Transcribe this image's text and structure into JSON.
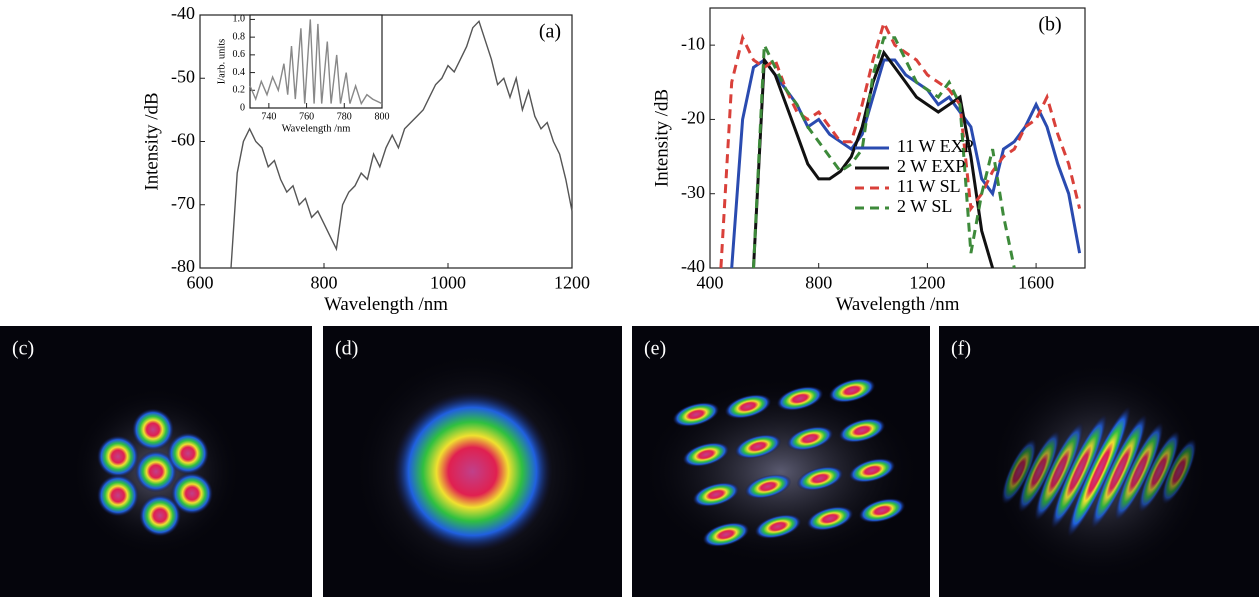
{
  "chart_data": [
    {
      "type": "line",
      "annotation": "(a)",
      "x_label": "Wavelength /nm",
      "y_label": "Intensity /dB",
      "color": "#555555",
      "xlim": [
        600,
        1200
      ],
      "ylim": [
        -80,
        -40
      ],
      "xticks": [
        600,
        800,
        1000,
        1200
      ],
      "yticks": [
        -80,
        -70,
        -60,
        -50,
        -40
      ],
      "x": [
        650,
        660,
        670,
        680,
        690,
        700,
        710,
        720,
        730,
        740,
        750,
        760,
        770,
        780,
        790,
        800,
        810,
        820,
        830,
        840,
        850,
        860,
        870,
        880,
        890,
        900,
        910,
        920,
        930,
        940,
        950,
        960,
        970,
        980,
        990,
        1000,
        1010,
        1020,
        1030,
        1040,
        1050,
        1060,
        1070,
        1080,
        1090,
        1100,
        1110,
        1120,
        1130,
        1140,
        1150,
        1160,
        1170,
        1180,
        1190,
        1200
      ],
      "values": [
        -80,
        -65,
        -60,
        -58,
        -60,
        -61,
        -64,
        -63,
        -66,
        -68,
        -67,
        -70,
        -69,
        -72,
        -71,
        -73,
        -75,
        -77,
        -70,
        -68,
        -67,
        -65,
        -66,
        -62,
        -64,
        -61,
        -59,
        -61,
        -58,
        -57,
        -56,
        -55,
        -53,
        -51,
        -50,
        -48,
        -49,
        -47,
        -45,
        -42,
        -41,
        -44,
        -47,
        -51,
        -50,
        -53,
        -50,
        -55,
        -52,
        -56,
        -58,
        -57,
        -60,
        -62,
        -66,
        -71
      ]
    },
    {
      "type": "line",
      "x_label": "Wavelength /nm",
      "y_label": "I/arb. units",
      "color": "#888888",
      "xlim": [
        730,
        800
      ],
      "ylim": [
        0,
        1.05
      ],
      "xticks": [
        740,
        760,
        780,
        800
      ],
      "yticks": [
        0,
        0.2,
        0.4,
        0.6,
        0.8,
        {
          "value": 1,
          "label": "1.0"
        }
      ],
      "x": [
        730,
        733,
        736,
        739,
        742,
        745,
        748,
        750,
        752,
        754,
        757,
        759,
        762,
        764,
        766,
        768,
        771,
        773,
        776,
        778,
        781,
        783,
        786,
        789,
        792,
        795,
        800
      ],
      "values": [
        0.25,
        0.1,
        0.3,
        0.15,
        0.35,
        0.2,
        0.5,
        0.15,
        0.7,
        0.1,
        0.9,
        0.05,
        1.0,
        0.05,
        0.95,
        0.05,
        0.75,
        0.05,
        0.6,
        0.05,
        0.4,
        0.05,
        0.25,
        0.05,
        0.15,
        0.1,
        0.05
      ]
    },
    {
      "type": "line",
      "annotation": "(b)",
      "x_label": "Wavelength /nm",
      "y_label": "Intensity /dB",
      "legend": "center right",
      "xlim": [
        400,
        1780
      ],
      "ylim": [
        -40,
        -5
      ],
      "xticks": [
        400,
        800,
        1200,
        1600
      ],
      "yticks": [
        -40,
        -30,
        -20,
        -10
      ],
      "x": [
        440,
        480,
        520,
        560,
        600,
        640,
        680,
        720,
        760,
        800,
        840,
        880,
        920,
        960,
        1000,
        1040,
        1080,
        1120,
        1160,
        1200,
        1240,
        1280,
        1320,
        1360,
        1400,
        1440,
        1480,
        1520,
        1560,
        1600,
        1640,
        1680,
        1720,
        1760
      ],
      "series": [
        {
          "name": "11 W EXP",
          "color": "#2a4bb0",
          "dash": false,
          "values": [
            null,
            -40,
            -20,
            -13,
            -12,
            -14,
            -16,
            -18,
            -21,
            -20,
            -22,
            -23,
            -24,
            -22,
            -17,
            -12,
            -12,
            -14,
            -15,
            -16,
            -18,
            -17,
            -19,
            -21,
            -28,
            -30,
            -24,
            -23,
            -21,
            -18,
            -21,
            -26,
            -30,
            -38
          ]
        },
        {
          "name": "2 W EXP",
          "color": "#111111",
          "dash": false,
          "values": [
            null,
            null,
            null,
            -40,
            -12,
            -14,
            -18,
            -22,
            -26,
            -28,
            -28,
            -27,
            -25,
            -21,
            -15,
            -11,
            -13,
            -15,
            -17,
            -18,
            -19,
            -18,
            -17,
            -25,
            -35,
            -40,
            null,
            null,
            null,
            null,
            null,
            null,
            null,
            null
          ]
        },
        {
          "name": "11 W SL",
          "color": "#d9403a",
          "dash": true,
          "values": [
            -40,
            -15,
            -9,
            -12,
            -13,
            -12,
            -16,
            -19,
            -20,
            -19,
            -21,
            -23,
            -23,
            -18,
            -12,
            -7,
            -10,
            -11,
            -12,
            -14,
            -15,
            -16,
            -18,
            -32,
            -30,
            -27,
            -25,
            -24,
            -21,
            -20,
            -17,
            -22,
            -26,
            -32
          ]
        },
        {
          "name": "2 W SL",
          "color": "#3d8a3a",
          "dash": true,
          "values": [
            null,
            null,
            null,
            -40,
            -10,
            -13,
            -16,
            -18,
            -21,
            -23,
            -25,
            -27,
            -26,
            -24,
            -14,
            -9,
            -9,
            -12,
            -15,
            -16,
            -17,
            -15,
            -18,
            -38,
            -30,
            -24,
            -33,
            -40,
            null,
            null,
            null,
            null,
            null,
            null
          ]
        }
      ]
    }
  ],
  "image_panels": [
    "(c)",
    "(d)",
    "(e)",
    "(f)"
  ]
}
